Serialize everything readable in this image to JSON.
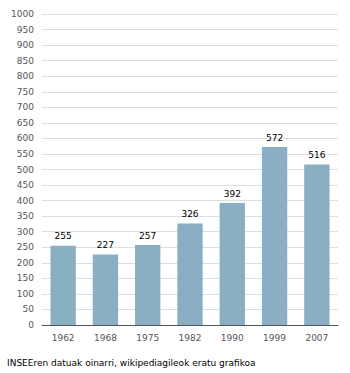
{
  "chart_data": {
    "type": "bar",
    "categories": [
      "1962",
      "1968",
      "1975",
      "1982",
      "1990",
      "1999",
      "2007"
    ],
    "values": [
      255,
      227,
      257,
      326,
      392,
      572,
      516
    ],
    "color": "#8aafc3",
    "ylim": [
      0,
      1000
    ],
    "yticks": [
      0,
      50,
      100,
      150,
      200,
      250,
      300,
      350,
      400,
      450,
      500,
      550,
      600,
      650,
      700,
      750,
      800,
      850,
      900,
      950,
      1000
    ],
    "grid": true,
    "data_labels": true,
    "annotations": [
      "INSEEren datuak oinarri, wikipediagileok eratu grafikoa"
    ]
  }
}
